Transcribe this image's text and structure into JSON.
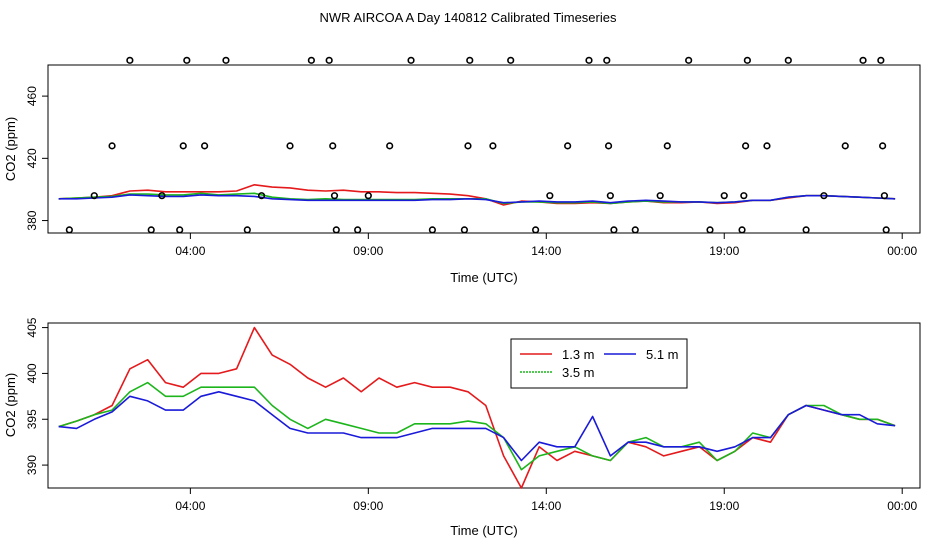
{
  "title": "NWR AIRCOA A  Day 140812  Calibrated Timeseries",
  "chart_data": [
    {
      "type": "scatter+line",
      "xlabel": "Time (UTC)",
      "ylabel": "CO2 (ppm)",
      "xlim": [
        0,
        24.5
      ],
      "ylim": [
        372,
        480
      ],
      "xticks": [
        {
          "value": 4,
          "label": "04:00"
        },
        {
          "value": 9,
          "label": "09:00"
        },
        {
          "value": 14,
          "label": "14:00"
        },
        {
          "value": 19,
          "label": "19:00"
        },
        {
          "value": 24,
          "label": "00:00"
        }
      ],
      "yticks": [
        {
          "value": 380,
          "label": "380"
        },
        {
          "value": 420,
          "label": "420"
        },
        {
          "value": 460,
          "label": "460"
        }
      ],
      "hours": [
        0.3,
        0.8,
        1.3,
        1.8,
        2.3,
        2.8,
        3.3,
        3.8,
        4.3,
        4.8,
        5.3,
        5.8,
        6.3,
        6.8,
        7.3,
        7.8,
        8.3,
        8.8,
        9.3,
        9.8,
        10.3,
        10.8,
        11.3,
        11.8,
        12.3,
        12.8,
        13.3,
        13.8,
        14.3,
        14.8,
        15.3,
        15.8,
        16.3,
        16.8,
        17.3,
        17.8,
        18.3,
        18.8,
        19.3,
        19.8,
        20.3,
        20.8,
        21.3,
        21.8,
        22.3,
        22.8,
        23.3,
        23.8
      ],
      "series": [
        {
          "name": "1.3 m",
          "color": "#e41a1c",
          "values": [
            394.0,
            394.5,
            395.0,
            396.0,
            399.0,
            399.5,
            398.5,
            398.5,
            398.5,
            398.5,
            399.0,
            403.0,
            401.5,
            401.0,
            399.5,
            399.0,
            399.5,
            398.5,
            398.5,
            398.0,
            398.0,
            397.5,
            397.0,
            396.0,
            394.0,
            390.0,
            392.5,
            392.0,
            391.0,
            391.0,
            391.5,
            391.0,
            392.0,
            392.5,
            391.5,
            391.5,
            392.0,
            391.0,
            391.5,
            393.0,
            393.0,
            394.5,
            396.0,
            396.0,
            395.5,
            395.0,
            394.5,
            394.0
          ]
        },
        {
          "name": "3.5 m",
          "color": "#1cb51c",
          "values": [
            394.0,
            394.5,
            395.0,
            395.5,
            397.0,
            397.0,
            396.5,
            396.5,
            397.5,
            396.5,
            397.0,
            397.5,
            395.0,
            394.0,
            393.5,
            394.0,
            393.5,
            393.5,
            393.5,
            393.5,
            393.5,
            394.0,
            394.0,
            394.0,
            394.0,
            391.0,
            392.0,
            392.0,
            391.5,
            391.5,
            392.0,
            391.0,
            392.0,
            392.5,
            392.0,
            392.0,
            392.0,
            391.5,
            392.0,
            393.0,
            393.0,
            395.0,
            396.0,
            396.0,
            395.5,
            395.0,
            394.5,
            394.0
          ]
        },
        {
          "name": "5.1 m",
          "color": "#1a1ad9",
          "values": [
            394.0,
            394.0,
            394.5,
            395.0,
            396.5,
            396.0,
            395.5,
            395.5,
            396.5,
            396.0,
            396.0,
            395.5,
            394.0,
            393.5,
            393.0,
            393.0,
            393.0,
            393.0,
            393.0,
            393.0,
            393.0,
            393.5,
            393.5,
            394.0,
            393.5,
            391.5,
            392.0,
            392.5,
            392.0,
            392.0,
            392.5,
            391.5,
            392.5,
            393.0,
            392.5,
            392.0,
            392.0,
            391.5,
            392.0,
            393.0,
            393.0,
            395.0,
            396.0,
            396.0,
            395.5,
            395.0,
            394.5,
            394.0
          ]
        }
      ],
      "points": [
        {
          "hour": 0.6,
          "co2": 374
        },
        {
          "hour": 1.3,
          "co2": 396
        },
        {
          "hour": 1.8,
          "co2": 428
        },
        {
          "hour": 2.3,
          "co2": 483
        },
        {
          "hour": 2.9,
          "co2": 374
        },
        {
          "hour": 3.2,
          "co2": 396
        },
        {
          "hour": 3.7,
          "co2": 374
        },
        {
          "hour": 3.8,
          "co2": 428
        },
        {
          "hour": 3.9,
          "co2": 483
        },
        {
          "hour": 4.4,
          "co2": 428
        },
        {
          "hour": 5.0,
          "co2": 483
        },
        {
          "hour": 5.6,
          "co2": 374
        },
        {
          "hour": 6.0,
          "co2": 396
        },
        {
          "hour": 6.8,
          "co2": 428
        },
        {
          "hour": 7.4,
          "co2": 483
        },
        {
          "hour": 7.9,
          "co2": 483
        },
        {
          "hour": 8.0,
          "co2": 428
        },
        {
          "hour": 8.05,
          "co2": 396
        },
        {
          "hour": 8.1,
          "co2": 374
        },
        {
          "hour": 8.7,
          "co2": 374
        },
        {
          "hour": 9.0,
          "co2": 396
        },
        {
          "hour": 9.6,
          "co2": 428
        },
        {
          "hour": 10.2,
          "co2": 483
        },
        {
          "hour": 10.8,
          "co2": 374
        },
        {
          "hour": 11.7,
          "co2": 374
        },
        {
          "hour": 11.8,
          "co2": 428
        },
        {
          "hour": 11.85,
          "co2": 483
        },
        {
          "hour": 12.5,
          "co2": 428
        },
        {
          "hour": 13.0,
          "co2": 483
        },
        {
          "hour": 13.7,
          "co2": 374
        },
        {
          "hour": 14.1,
          "co2": 396
        },
        {
          "hour": 14.6,
          "co2": 428
        },
        {
          "hour": 15.2,
          "co2": 483
        },
        {
          "hour": 15.7,
          "co2": 483
        },
        {
          "hour": 15.75,
          "co2": 428
        },
        {
          "hour": 15.8,
          "co2": 396
        },
        {
          "hour": 15.9,
          "co2": 374
        },
        {
          "hour": 16.5,
          "co2": 374
        },
        {
          "hour": 17.2,
          "co2": 396
        },
        {
          "hour": 17.4,
          "co2": 428
        },
        {
          "hour": 18.0,
          "co2": 483
        },
        {
          "hour": 18.6,
          "co2": 374
        },
        {
          "hour": 19.0,
          "co2": 396
        },
        {
          "hour": 19.5,
          "co2": 374
        },
        {
          "hour": 19.55,
          "co2": 396
        },
        {
          "hour": 19.6,
          "co2": 428
        },
        {
          "hour": 19.65,
          "co2": 483
        },
        {
          "hour": 20.2,
          "co2": 428
        },
        {
          "hour": 20.8,
          "co2": 483
        },
        {
          "hour": 21.3,
          "co2": 374
        },
        {
          "hour": 21.8,
          "co2": 396
        },
        {
          "hour": 22.4,
          "co2": 428
        },
        {
          "hour": 22.9,
          "co2": 483
        },
        {
          "hour": 23.4,
          "co2": 483
        },
        {
          "hour": 23.45,
          "co2": 428
        },
        {
          "hour": 23.5,
          "co2": 396
        },
        {
          "hour": 23.55,
          "co2": 374
        }
      ]
    },
    {
      "type": "line",
      "xlabel": "Time (UTC)",
      "ylabel": "CO2 (ppm)",
      "xlim": [
        0,
        24.5
      ],
      "ylim": [
        387.5,
        405.5
      ],
      "xticks": [
        {
          "value": 4,
          "label": "04:00"
        },
        {
          "value": 9,
          "label": "09:00"
        },
        {
          "value": 14,
          "label": "14:00"
        },
        {
          "value": 19,
          "label": "19:00"
        },
        {
          "value": 24,
          "label": "00:00"
        }
      ],
      "yticks": [
        {
          "value": 390,
          "label": "390"
        },
        {
          "value": 395,
          "label": "395"
        },
        {
          "value": 400,
          "label": "400"
        },
        {
          "value": 405,
          "label": "405"
        }
      ],
      "legend": {
        "position": "top-center",
        "entries": [
          "1.3 m",
          "5.1 m",
          "3.5 m"
        ]
      },
      "hours": [
        0.3,
        0.8,
        1.3,
        1.8,
        2.3,
        2.8,
        3.3,
        3.8,
        4.3,
        4.8,
        5.3,
        5.8,
        6.3,
        6.8,
        7.3,
        7.8,
        8.3,
        8.8,
        9.3,
        9.8,
        10.3,
        10.8,
        11.3,
        11.8,
        12.3,
        12.8,
        13.3,
        13.8,
        14.3,
        14.8,
        15.3,
        15.8,
        16.3,
        16.8,
        17.3,
        17.8,
        18.3,
        18.8,
        19.3,
        19.8,
        20.3,
        20.8,
        21.3,
        21.8,
        22.3,
        22.8,
        23.3,
        23.8
      ],
      "series": [
        {
          "name": "1.3 m",
          "color": "#e41a1c",
          "values": [
            394.2,
            394.8,
            395.5,
            396.5,
            400.5,
            401.5,
            399.0,
            398.5,
            400.0,
            400.0,
            400.5,
            405.0,
            402.0,
            401.0,
            399.5,
            398.5,
            399.5,
            398.0,
            399.5,
            398.5,
            399.0,
            398.5,
            398.5,
            398.0,
            396.5,
            391.0,
            387.5,
            392.0,
            390.5,
            391.5,
            391.0,
            390.5,
            392.5,
            392.0,
            391.0,
            391.5,
            392.0,
            390.5,
            391.5,
            393.0,
            392.5,
            395.5,
            396.5,
            396.0,
            395.5,
            395.0,
            395.0,
            394.3
          ]
        },
        {
          "name": "3.5 m",
          "color": "#1cb51c",
          "values": [
            394.2,
            394.8,
            395.5,
            396.0,
            398.0,
            399.0,
            397.5,
            397.5,
            398.5,
            398.5,
            398.5,
            398.5,
            396.5,
            395.0,
            394.0,
            395.0,
            394.5,
            394.0,
            393.5,
            393.5,
            394.5,
            394.5,
            394.5,
            394.8,
            394.5,
            393.0,
            389.5,
            391.0,
            391.5,
            392.0,
            391.0,
            390.5,
            392.5,
            393.0,
            392.0,
            392.0,
            392.5,
            390.5,
            391.5,
            393.5,
            393.0,
            395.5,
            396.5,
            396.5,
            395.5,
            395.0,
            395.0,
            394.3
          ]
        },
        {
          "name": "5.1 m",
          "color": "#1a1ad9",
          "values": [
            394.2,
            394.0,
            395.0,
            395.8,
            397.5,
            397.0,
            396.0,
            396.0,
            397.5,
            398.0,
            397.5,
            397.0,
            395.5,
            394.0,
            393.5,
            393.5,
            393.5,
            393.0,
            393.0,
            393.0,
            393.5,
            394.0,
            394.0,
            394.0,
            394.0,
            393.0,
            390.5,
            392.5,
            392.0,
            392.0,
            395.3,
            391.0,
            392.5,
            392.5,
            392.0,
            392.0,
            392.0,
            391.5,
            392.0,
            393.0,
            393.0,
            395.5,
            396.5,
            396.0,
            395.5,
            395.5,
            394.5,
            394.3
          ]
        }
      ]
    }
  ]
}
